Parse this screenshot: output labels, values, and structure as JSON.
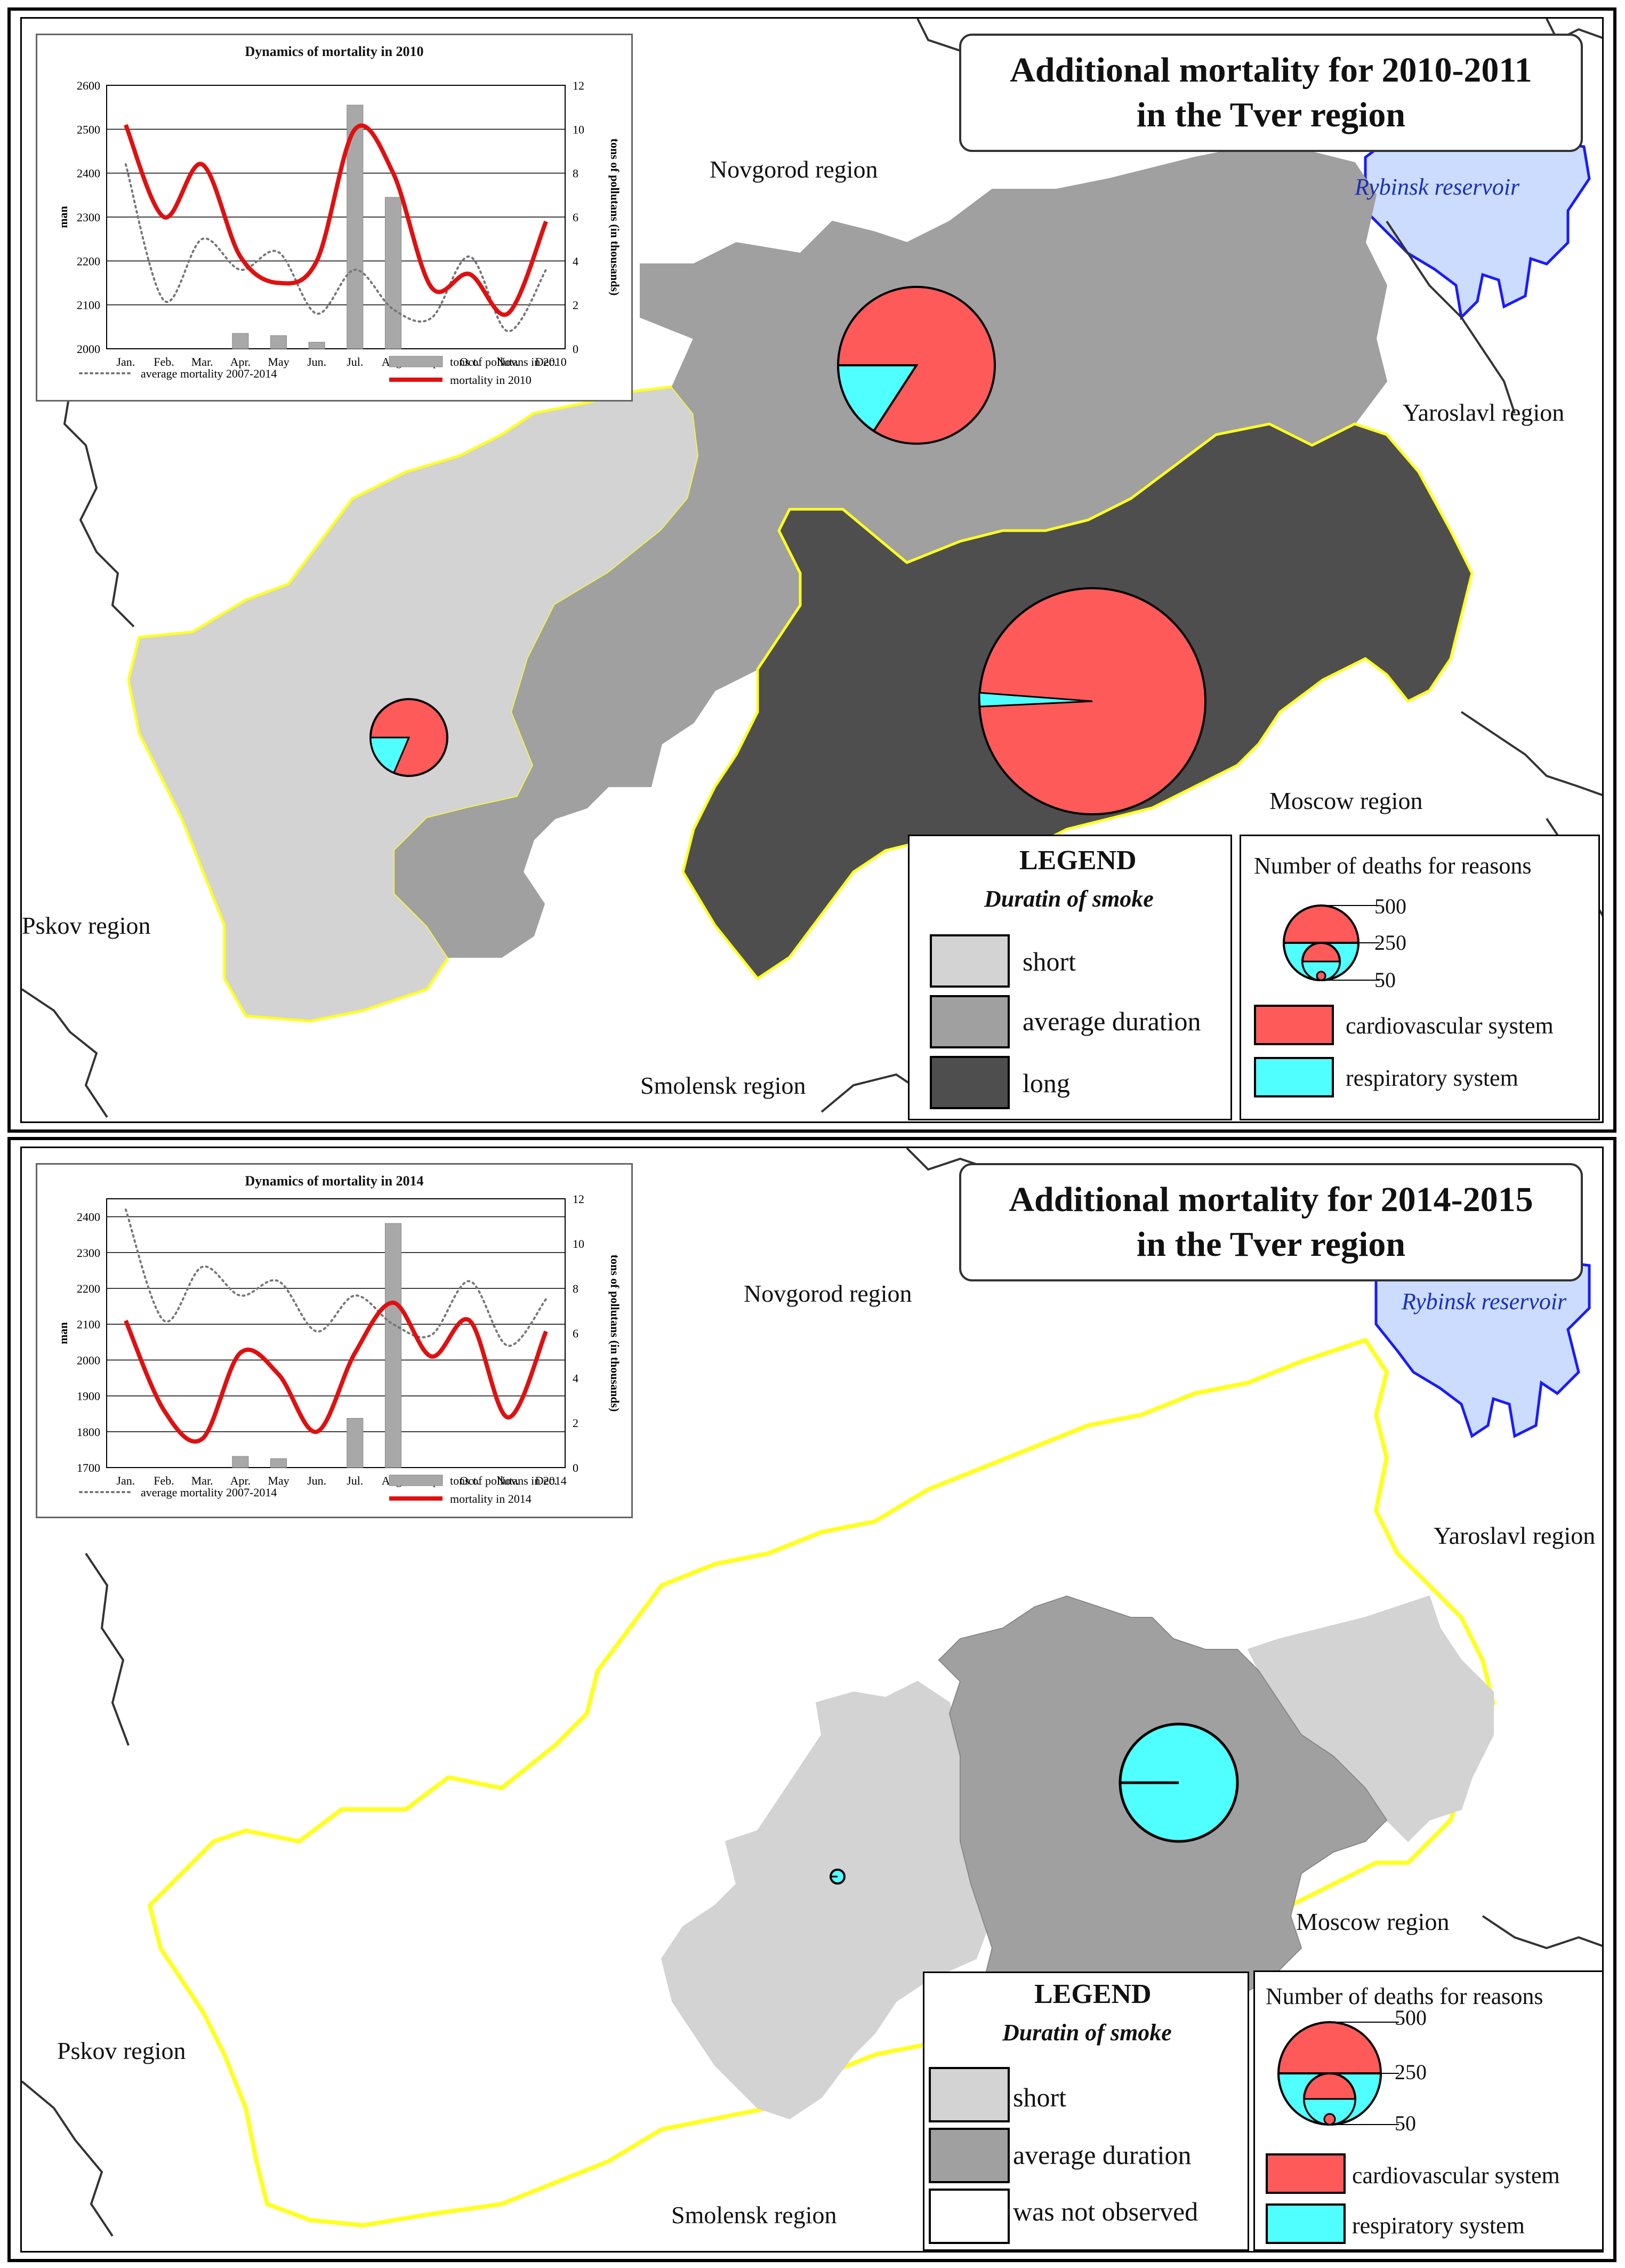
{
  "colors": {
    "short": "#d3d3d3",
    "average": "#a0a0a0",
    "long": "#4e4e4e",
    "not_observed": "#ffffff",
    "cardiovascular": "#ff5a5a",
    "respiratory": "#50ffff",
    "border_yellow": "#ffff22",
    "reservoir_fill": "#ccdcff",
    "reservoir_edge": "#1a1aff",
    "mortality_line": "#e01010",
    "avg_line": "#777777",
    "bars": "#a8a8a8"
  },
  "panel1": {
    "title_line1": "Additional mortality for 2010-2011",
    "title_line2": "in the Tver region",
    "regions": {
      "novgorod": "Novgorod region",
      "yaroslavl": "Yaroslavl region",
      "moscow": "Moscow region",
      "pskov": "Pskov region",
      "smolensk": "Smolensk region",
      "reservoir": "Rybinsk reservoir"
    },
    "chart": {
      "title": "Dynamics of mortality in 2010",
      "ylabel_left": "man",
      "ylabel_right": "tons of pollutans (in thousands)",
      "left_ticks": [
        "2600",
        "2500",
        "2400",
        "2300",
        "2200",
        "2100",
        "2000"
      ],
      "right_ticks": [
        "12",
        "10",
        "8",
        "6",
        "4",
        "2",
        "0"
      ],
      "months": [
        "Jan.",
        "Feb.",
        "Mar.",
        "Apr.",
        "May",
        "Jun.",
        "Jul.",
        "Aug.",
        "Sep.",
        "Oct.",
        "Nov.",
        "Dec."
      ],
      "legend_avg": "average mortality 2007-2014",
      "legend_bars": "tons of pollutans in 2010",
      "legend_line": "mortality in 2010"
    },
    "legend": {
      "title": "LEGEND",
      "subtitle": "Duratin of smoke",
      "items": [
        "short",
        "average duration",
        "long"
      ],
      "deaths_title": "Number of deaths for reasons",
      "sizes": [
        "500",
        "250",
        "50"
      ],
      "causes": [
        "cardiovascular system",
        "respiratory system"
      ]
    }
  },
  "panel2": {
    "title_line1": "Additional mortality for 2014-2015",
    "title_line2": "in the Tver region",
    "regions": {
      "novgorod": "Novgorod region",
      "yaroslavl": "Yaroslavl region",
      "moscow": "Moscow region",
      "pskov": "Pskov region",
      "smolensk": "Smolensk region",
      "reservoir": "Rybinsk reservoir"
    },
    "chart": {
      "title": "Dynamics of mortality in 2014",
      "ylabel_left": "man",
      "ylabel_right": "tons of pollutans (in thousands)",
      "left_ticks": [
        "2400",
        "2300",
        "2200",
        "2100",
        "2000",
        "1900",
        "1800",
        "1700"
      ],
      "right_ticks": [
        "12",
        "10",
        "8",
        "6",
        "4",
        "2",
        "0"
      ],
      "months": [
        "Jan.",
        "Feb.",
        "Mar.",
        "Apr.",
        "May",
        "Jun.",
        "Jul.",
        "Aug.",
        "Sep.",
        "Oct.",
        "Nov.",
        "Dec."
      ],
      "legend_avg": "average mortality 2007-2014",
      "legend_bars": "tons of pollutans in 2014",
      "legend_line": "mortality in 2014"
    },
    "legend": {
      "title": "LEGEND",
      "subtitle": "Duratin of smoke",
      "items": [
        "short",
        "average duration",
        "was not observed"
      ],
      "deaths_title": "Number of deaths for reasons",
      "sizes": [
        "500",
        "250",
        "50"
      ],
      "causes": [
        "cardiovascular system",
        "respiratory system"
      ]
    }
  },
  "chart_data": [
    {
      "type": "line",
      "title": "Dynamics of mortality in 2010",
      "xlabel": "",
      "ylabel": "man",
      "y2label": "tons of pollutans (in thousands)",
      "categories": [
        "Jan.",
        "Feb.",
        "Mar.",
        "Apr.",
        "May",
        "Jun.",
        "Jul.",
        "Aug.",
        "Sep.",
        "Oct.",
        "Nov.",
        "Dec."
      ],
      "ylim": [
        2000,
        2600
      ],
      "y2lim": [
        0,
        12
      ],
      "series": [
        {
          "name": "mortality in 2010",
          "axis": "left",
          "style": "line",
          "values": [
            2510,
            2300,
            2420,
            2210,
            2150,
            2200,
            2500,
            2400,
            2140,
            2170,
            2080,
            2290
          ]
        },
        {
          "name": "average mortality 2007-2014",
          "axis": "left",
          "style": "dotted",
          "values": [
            2420,
            2110,
            2250,
            2180,
            2220,
            2080,
            2180,
            2090,
            2070,
            2210,
            2040,
            2180
          ]
        },
        {
          "name": "tons of pollutans in 2010",
          "axis": "right",
          "style": "bar",
          "values": [
            0,
            0,
            0,
            0.7,
            0.6,
            0.3,
            11.1,
            6.9,
            0,
            0,
            0,
            0
          ]
        }
      ]
    },
    {
      "type": "line",
      "title": "Dynamics of mortality in 2014",
      "xlabel": "",
      "ylabel": "man",
      "y2label": "tons of pollutans (in thousands)",
      "categories": [
        "Jan.",
        "Feb.",
        "Mar.",
        "Apr.",
        "May",
        "Jun.",
        "Jul.",
        "Aug.",
        "Sep.",
        "Oct.",
        "Nov.",
        "Dec."
      ],
      "ylim": [
        1700,
        2450
      ],
      "y2lim": [
        0,
        12
      ],
      "series": [
        {
          "name": "mortality in 2014",
          "axis": "left",
          "style": "line",
          "values": [
            2110,
            1860,
            1780,
            2020,
            1960,
            1800,
            2020,
            2160,
            2010,
            2110,
            1840,
            2080
          ]
        },
        {
          "name": "average mortality 2007-2014",
          "axis": "left",
          "style": "dotted",
          "values": [
            2420,
            2110,
            2260,
            2180,
            2220,
            2080,
            2180,
            2100,
            2070,
            2220,
            2040,
            2170
          ]
        },
        {
          "name": "tons of pollutans in 2014",
          "axis": "right",
          "style": "bar",
          "values": [
            0,
            0,
            0,
            0.5,
            0.4,
            0,
            2.2,
            10.9,
            0,
            0,
            0,
            0
          ]
        }
      ]
    }
  ]
}
